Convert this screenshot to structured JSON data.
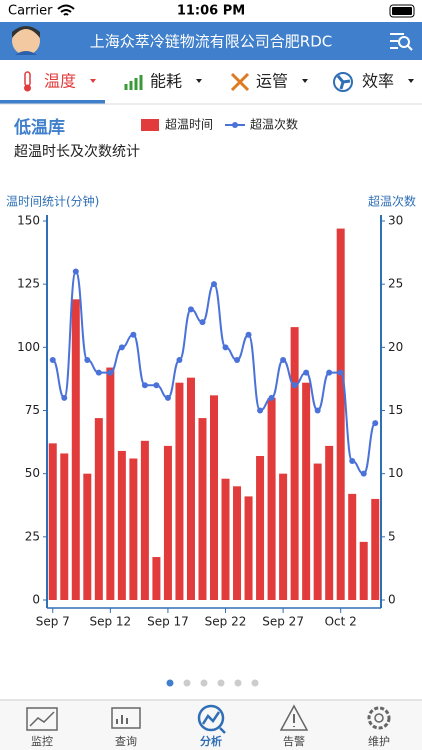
{
  "status_bar": {
    "carrier": "Carrier",
    "time": "11:06 PM"
  },
  "header": {
    "title": "上海众萃冷链物流有限公司合肥RDC"
  },
  "tabs": [
    "温度",
    "能耗",
    "运管",
    "效率"
  ],
  "chart_data": {
    "type": "bar",
    "title": "低温库",
    "subtitle": "超温时长及次数统计",
    "ylabel": "温时间统计(分钟)",
    "y2label": "超温次数",
    "categories": [
      "Sep 7",
      null,
      null,
      null,
      null,
      "Sep 12",
      null,
      null,
      null,
      null,
      "Sep 17",
      null,
      null,
      null,
      null,
      "Sep 22",
      null,
      null,
      null,
      null,
      "Sep 27",
      null,
      null,
      null,
      null,
      "Oct 2",
      null,
      null,
      null
    ],
    "series": [
      {
        "name": "超温时间",
        "type": "bar",
        "color": "#e23b3b",
        "values": [
          62,
          58,
          119,
          50,
          72,
          92,
          59,
          56,
          63,
          17,
          61,
          86,
          88,
          72,
          81,
          48,
          45,
          41,
          57,
          80,
          50,
          108,
          86,
          54,
          61,
          147,
          42,
          23,
          40
        ]
      },
      {
        "name": "超温次数",
        "type": "line",
        "axis": "y2",
        "color": "#4a72d8",
        "values": [
          19,
          16,
          26,
          19,
          18,
          18,
          20,
          21,
          17,
          17,
          16,
          19,
          23,
          22,
          25,
          20,
          19,
          21,
          15,
          16,
          19,
          17,
          18,
          15,
          18,
          18,
          11,
          10,
          14
        ]
      }
    ],
    "ylim": [
      0,
      150
    ],
    "yticks": [
      0,
      25,
      50,
      75,
      100,
      125,
      150
    ],
    "y2lim": [
      0,
      30
    ],
    "y2ticks": [
      0,
      5,
      10,
      15,
      20,
      25,
      30
    ]
  },
  "nav": [
    "监控",
    "查询",
    "分析",
    "告警",
    "维护"
  ]
}
